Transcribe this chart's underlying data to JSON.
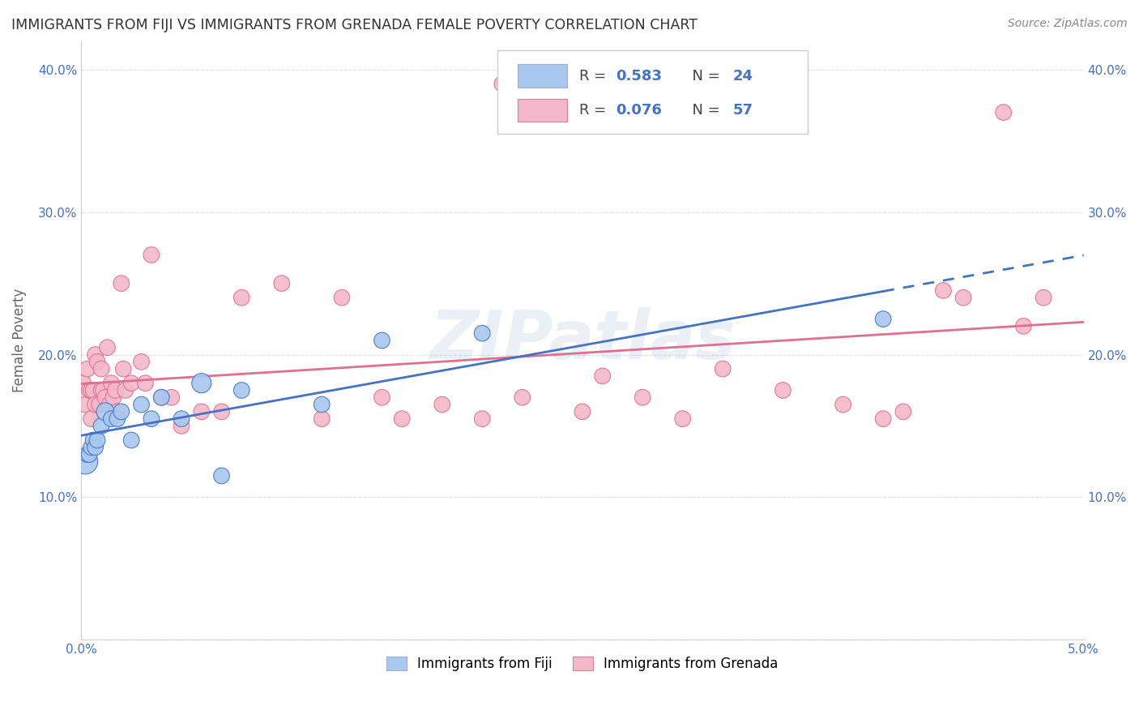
{
  "title": "IMMIGRANTS FROM FIJI VS IMMIGRANTS FROM GRENADA FEMALE POVERTY CORRELATION CHART",
  "source": "Source: ZipAtlas.com",
  "ylabel": "Female Poverty",
  "xlim": [
    0.0,
    0.05
  ],
  "ylim": [
    0.0,
    0.42
  ],
  "x_ticks": [
    0.0,
    0.01,
    0.02,
    0.03,
    0.04,
    0.05
  ],
  "x_tick_labels_bottom": [
    "0.0%",
    "",
    "",
    "",
    "",
    "5.0%"
  ],
  "y_ticks": [
    0.0,
    0.1,
    0.2,
    0.3,
    0.4
  ],
  "y_tick_labels_left": [
    "",
    "10.0%",
    "20.0%",
    "30.0%",
    "40.0%"
  ],
  "y_tick_labels_right": [
    "",
    "10.0%",
    "20.0%",
    "30.0%",
    "40.0%"
  ],
  "fiji_color": "#a8c8f0",
  "grenada_color": "#f5b8c8",
  "fiji_line_color": "#4472c4",
  "grenada_line_color": "#e07090",
  "legend_r_fiji": "0.583",
  "legend_n_fiji": "24",
  "legend_r_grenada": "0.076",
  "legend_n_grenada": "57",
  "fiji_label": "Immigrants from Fiji",
  "grenada_label": "Immigrants from Grenada",
  "fiji_x": [
    0.0002,
    0.0003,
    0.0004,
    0.0005,
    0.0006,
    0.0007,
    0.0008,
    0.001,
    0.0012,
    0.0015,
    0.0018,
    0.002,
    0.0025,
    0.003,
    0.0035,
    0.004,
    0.005,
    0.006,
    0.007,
    0.008,
    0.012,
    0.015,
    0.02,
    0.04
  ],
  "fiji_y": [
    0.125,
    0.13,
    0.13,
    0.135,
    0.14,
    0.135,
    0.14,
    0.15,
    0.16,
    0.155,
    0.155,
    0.16,
    0.14,
    0.165,
    0.155,
    0.17,
    0.155,
    0.18,
    0.115,
    0.175,
    0.165,
    0.21,
    0.215,
    0.225
  ],
  "fiji_size": [
    500,
    200,
    200,
    200,
    200,
    200,
    200,
    200,
    250,
    200,
    200,
    200,
    200,
    200,
    200,
    200,
    200,
    300,
    200,
    200,
    200,
    200,
    200,
    200
  ],
  "grenada_x": [
    0.0001,
    0.0002,
    0.0003,
    0.0004,
    0.0005,
    0.0005,
    0.0006,
    0.0007,
    0.0007,
    0.0008,
    0.0009,
    0.001,
    0.001,
    0.0011,
    0.0012,
    0.0013,
    0.0014,
    0.0015,
    0.0016,
    0.0017,
    0.0018,
    0.002,
    0.0021,
    0.0022,
    0.0025,
    0.003,
    0.0032,
    0.0035,
    0.004,
    0.0045,
    0.005,
    0.006,
    0.007,
    0.008,
    0.01,
    0.012,
    0.013,
    0.015,
    0.016,
    0.018,
    0.02,
    0.021,
    0.022,
    0.025,
    0.026,
    0.028,
    0.03,
    0.032,
    0.035,
    0.038,
    0.04,
    0.041,
    0.043,
    0.044,
    0.046,
    0.047,
    0.048
  ],
  "grenada_y": [
    0.18,
    0.165,
    0.19,
    0.175,
    0.155,
    0.175,
    0.175,
    0.2,
    0.165,
    0.195,
    0.165,
    0.175,
    0.19,
    0.175,
    0.17,
    0.205,
    0.165,
    0.18,
    0.17,
    0.175,
    0.16,
    0.25,
    0.19,
    0.175,
    0.18,
    0.195,
    0.18,
    0.27,
    0.17,
    0.17,
    0.15,
    0.16,
    0.16,
    0.24,
    0.25,
    0.155,
    0.24,
    0.17,
    0.155,
    0.165,
    0.155,
    0.39,
    0.17,
    0.16,
    0.185,
    0.17,
    0.155,
    0.19,
    0.175,
    0.165,
    0.155,
    0.16,
    0.245,
    0.24,
    0.37,
    0.22,
    0.24
  ],
  "grenada_size": [
    200,
    200,
    200,
    200,
    200,
    200,
    200,
    200,
    200,
    200,
    200,
    200,
    200,
    200,
    200,
    200,
    200,
    200,
    200,
    200,
    200,
    200,
    200,
    200,
    200,
    200,
    200,
    200,
    200,
    200,
    200,
    200,
    200,
    200,
    200,
    200,
    200,
    200,
    200,
    200,
    200,
    200,
    200,
    200,
    200,
    200,
    200,
    200,
    200,
    200,
    200,
    200,
    200,
    200,
    200,
    200,
    200
  ],
  "background_color": "#ffffff",
  "grid_color": "#e0e0e0",
  "title_color": "#333333",
  "axis_color": "#4472c4",
  "axis_label_color": "#666666",
  "watermark": "ZIPatlas"
}
